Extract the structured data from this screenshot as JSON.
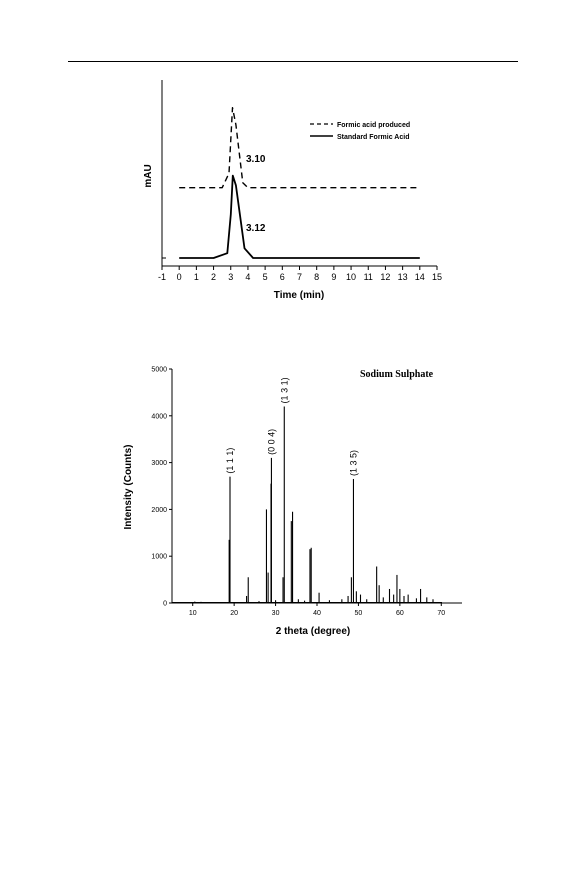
{
  "chart_data": [
    {
      "type": "line",
      "title": "",
      "xlabel": "Time (min)",
      "ylabel": "mAU",
      "xlim": [
        -1,
        15
      ],
      "x_ticks": [
        "-1",
        "0",
        "1",
        "2",
        "3",
        "4",
        "5",
        "6",
        "7",
        "8",
        "9",
        "10",
        "11",
        "12",
        "13",
        "14",
        "15"
      ],
      "legend_position": "top-right",
      "series": [
        {
          "name": "Formic acid produced",
          "style": "dashed",
          "x": [
            0,
            2.5,
            2.9,
            3.1,
            3.3,
            3.7,
            4.0,
            14
          ],
          "y": [
            0.29,
            0.29,
            0.35,
            0.62,
            0.55,
            0.31,
            0.29,
            0.29
          ]
        },
        {
          "name": "Standard Formic Acid",
          "style": "solid",
          "x": [
            0,
            2.0,
            2.8,
            3.0,
            3.12,
            3.3,
            3.8,
            4.3,
            14
          ],
          "y": [
            0.0,
            0.0,
            0.02,
            0.18,
            0.34,
            0.3,
            0.04,
            0.0,
            0.0
          ]
        }
      ],
      "annotations": [
        {
          "text": "3.10",
          "x": 3.1,
          "y": 0.62
        },
        {
          "text": "3.12",
          "x": 3.12,
          "y": 0.34
        }
      ]
    },
    {
      "type": "bar",
      "title": "Sodium Sulphate",
      "xlabel": "2 theta (degree)",
      "ylabel": "Intensity (Counts)",
      "xlim": [
        5,
        75
      ],
      "ylim": [
        0,
        5000
      ],
      "x_ticks": [
        "10",
        "20",
        "30",
        "40",
        "50",
        "60",
        "70"
      ],
      "y_ticks": [
        "0",
        "1000",
        "2000",
        "3000",
        "4000",
        "5000"
      ],
      "peaks": [
        {
          "x": 10.5,
          "y": 30
        },
        {
          "x": 12.0,
          "y": 25
        },
        {
          "x": 13.5,
          "y": 20
        },
        {
          "x": 18.8,
          "y": 1350
        },
        {
          "x": 19.0,
          "y": 2700
        },
        {
          "x": 23.0,
          "y": 150
        },
        {
          "x": 23.4,
          "y": 550
        },
        {
          "x": 26.0,
          "y": 40
        },
        {
          "x": 27.8,
          "y": 2000
        },
        {
          "x": 28.2,
          "y": 650
        },
        {
          "x": 28.9,
          "y": 2550
        },
        {
          "x": 29.0,
          "y": 3100
        },
        {
          "x": 30.0,
          "y": 60
        },
        {
          "x": 31.8,
          "y": 550
        },
        {
          "x": 32.1,
          "y": 4200
        },
        {
          "x": 33.8,
          "y": 1750
        },
        {
          "x": 34.1,
          "y": 1950
        },
        {
          "x": 35.5,
          "y": 80
        },
        {
          "x": 37.0,
          "y": 50
        },
        {
          "x": 38.3,
          "y": 1150
        },
        {
          "x": 38.6,
          "y": 1180
        },
        {
          "x": 40.5,
          "y": 220
        },
        {
          "x": 43.0,
          "y": 60
        },
        {
          "x": 46.0,
          "y": 80
        },
        {
          "x": 47.5,
          "y": 150
        },
        {
          "x": 48.3,
          "y": 550
        },
        {
          "x": 48.8,
          "y": 2650
        },
        {
          "x": 49.5,
          "y": 250
        },
        {
          "x": 50.5,
          "y": 180
        },
        {
          "x": 52.0,
          "y": 80
        },
        {
          "x": 54.4,
          "y": 780
        },
        {
          "x": 55.0,
          "y": 380
        },
        {
          "x": 56.0,
          "y": 120
        },
        {
          "x": 57.5,
          "y": 300
        },
        {
          "x": 58.5,
          "y": 180
        },
        {
          "x": 59.3,
          "y": 600
        },
        {
          "x": 60.0,
          "y": 300
        },
        {
          "x": 61.0,
          "y": 150
        },
        {
          "x": 62.0,
          "y": 180
        },
        {
          "x": 64.0,
          "y": 100
        },
        {
          "x": 65.0,
          "y": 300
        },
        {
          "x": 66.5,
          "y": 120
        },
        {
          "x": 68.0,
          "y": 80
        }
      ],
      "annotations": [
        {
          "text": "(1 1 1)",
          "x": 19.0,
          "y": 2700
        },
        {
          "text": "(0 0 4)",
          "x": 29.0,
          "y": 3100
        },
        {
          "text": "(1 3 1)",
          "x": 32.1,
          "y": 4200
        },
        {
          "text": "(1 3 5)",
          "x": 48.8,
          "y": 2650
        }
      ]
    }
  ]
}
